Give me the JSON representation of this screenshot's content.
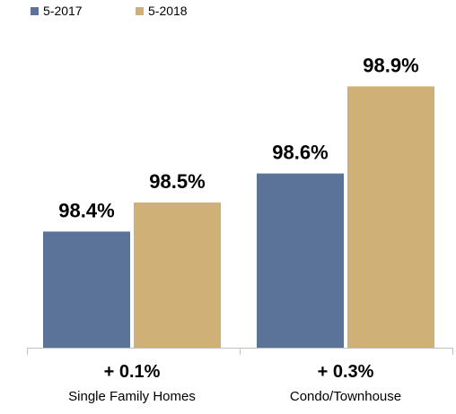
{
  "chart_data": {
    "type": "bar",
    "categories": [
      "Single Family Homes",
      "Condo/Townhouse"
    ],
    "series": [
      {
        "name": "5-2017",
        "values": [
          98.4,
          98.6
        ],
        "color": "#5a7396"
      },
      {
        "name": "5-2018",
        "values": [
          98.5,
          98.9
        ],
        "color": "#cfb076"
      }
    ],
    "data_labels": [
      [
        "98.4%",
        "98.5%"
      ],
      [
        "98.6%",
        "98.9%"
      ]
    ],
    "changes": [
      "+ 0.1%",
      "+ 0.3%"
    ],
    "ylim": [
      98.0,
      99.0
    ],
    "grid": false,
    "legend_position": "top-left"
  }
}
